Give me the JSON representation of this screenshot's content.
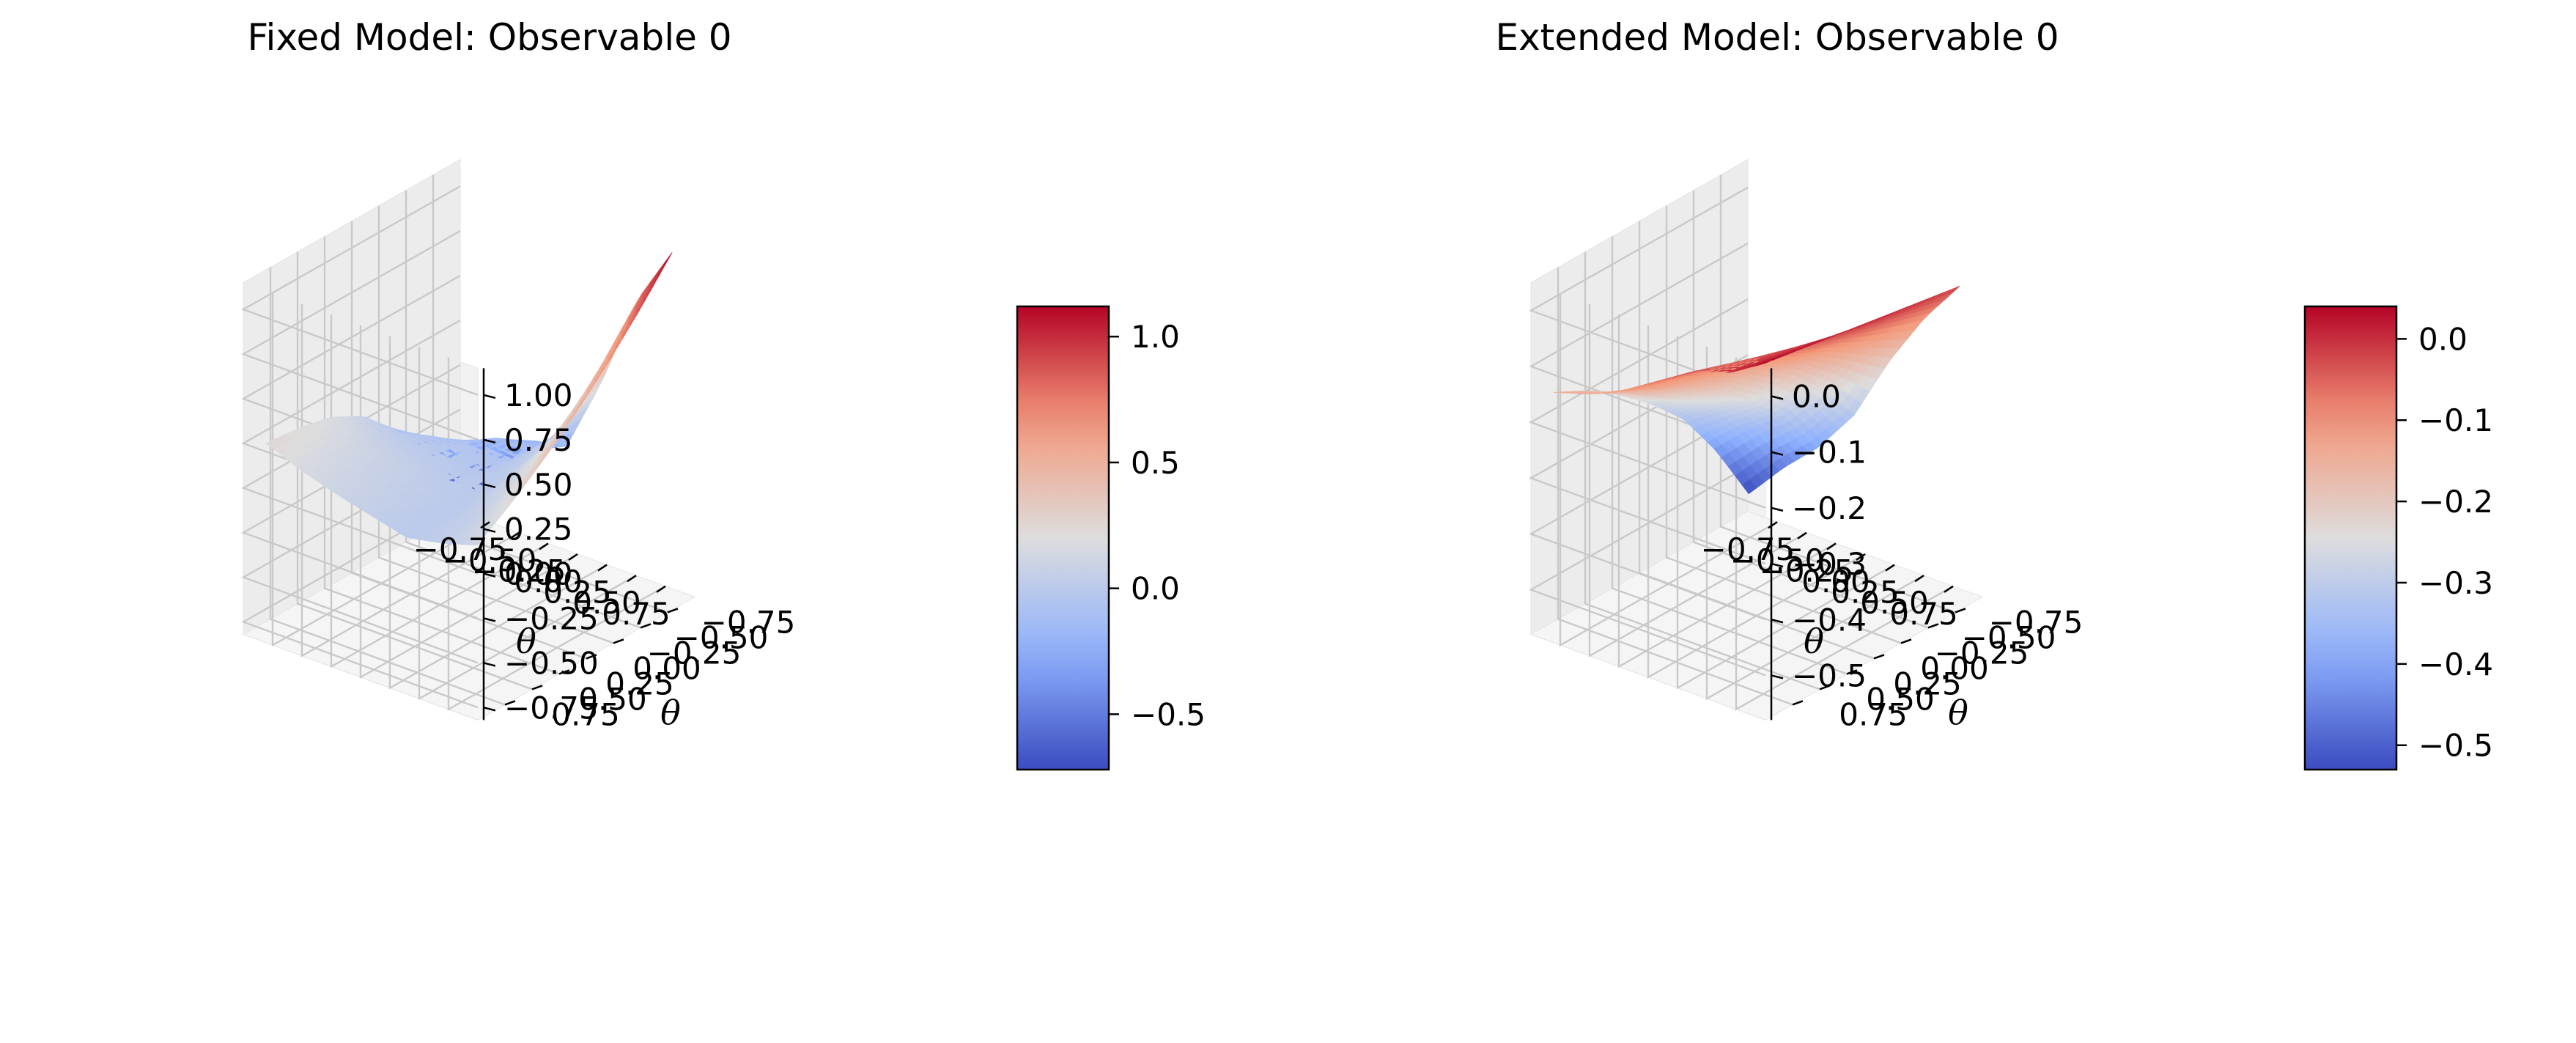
{
  "chart_data": [
    {
      "type": "surface",
      "title": "Fixed Model: Observable 0",
      "xlabel": "θ",
      "ylabel": "θ",
      "zlabel": "",
      "x_ticks": [
        "−0.75",
        "−0.50",
        "−0.25",
        "0.00",
        "0.25",
        "0.50",
        "0.75"
      ],
      "y_ticks": [
        "−0.75",
        "−0.50",
        "−0.25",
        "0.00",
        "0.25",
        "0.50",
        "0.75"
      ],
      "z_ticks": [
        "−0.75",
        "−0.50",
        "−0.25",
        "0.00",
        "0.25",
        "0.50",
        "0.75",
        "1.00"
      ],
      "x_values": [
        -0.75,
        -0.5,
        -0.25,
        0.0,
        0.25,
        0.5,
        0.75
      ],
      "y_values": [
        -0.75,
        -0.5,
        -0.25,
        0.0,
        0.25,
        0.5,
        0.75
      ],
      "z_values": [
        -0.75,
        -0.5,
        -0.25,
        0.0,
        0.25,
        0.5,
        0.75,
        1.0
      ],
      "xlim": [
        -1.0,
        1.0
      ],
      "ylim": [
        -1.0,
        1.0
      ],
      "zlim": [
        -0.82,
        1.15
      ],
      "surface_x": [
        -0.9,
        -0.6,
        -0.3,
        0.0,
        0.3,
        0.6,
        0.9
      ],
      "surface_y": [
        -0.9,
        -0.6,
        -0.3,
        0.0,
        0.3,
        0.6,
        0.9
      ],
      "surface_z": [
        [
          -0.72,
          -0.38,
          -0.1,
          0.08,
          0.18,
          0.22,
          0.24
        ],
        [
          -0.48,
          -0.2,
          -0.06,
          0.02,
          0.1,
          0.14,
          0.16
        ],
        [
          -0.22,
          -0.1,
          -0.04,
          0.0,
          0.06,
          0.08,
          0.1
        ],
        [
          -0.18,
          -0.1,
          -0.06,
          -0.02,
          0.02,
          0.04,
          0.05
        ],
        [
          0.25,
          0.12,
          0.05,
          0.02,
          0.0,
          0.0,
          0.0
        ],
        [
          0.78,
          0.55,
          0.35,
          0.22,
          0.12,
          0.06,
          0.04
        ],
        [
          1.12,
          0.9,
          0.7,
          0.52,
          0.36,
          0.22,
          0.1
        ]
      ],
      "colormap": "coolwarm",
      "colorbar": {
        "range": [
          -0.72,
          1.12
        ],
        "ticks": [
          "−0.5",
          "0.0",
          "0.5",
          "1.0"
        ],
        "values": [
          -0.5,
          0.0,
          0.5,
          1.0
        ]
      },
      "grid": true
    },
    {
      "type": "surface",
      "title": "Extended Model: Observable 0",
      "xlabel": "θ",
      "ylabel": "θ",
      "zlabel": "",
      "x_ticks": [
        "−0.75",
        "−0.50",
        "−0.25",
        "0.00",
        "0.25",
        "0.50",
        "0.75"
      ],
      "y_ticks": [
        "−0.75",
        "−0.50",
        "−0.25",
        "0.00",
        "0.25",
        "0.50",
        "0.75"
      ],
      "z_ticks": [
        "−0.5",
        "−0.4",
        "−0.3",
        "−0.2",
        "−0.1",
        "0.0"
      ],
      "x_values": [
        -0.75,
        -0.5,
        -0.25,
        0.0,
        0.25,
        0.5,
        0.75
      ],
      "y_values": [
        -0.75,
        -0.5,
        -0.25,
        0.0,
        0.25,
        0.5,
        0.75
      ],
      "z_values": [
        -0.5,
        -0.4,
        -0.3,
        -0.2,
        -0.1,
        0.0
      ],
      "xlim": [
        -1.0,
        1.0
      ],
      "ylim": [
        -1.0,
        1.0
      ],
      "zlim": [
        -0.58,
        0.05
      ],
      "surface_x": [
        -0.9,
        -0.6,
        -0.3,
        0.0,
        0.3,
        0.6,
        0.9
      ],
      "surface_y": [
        -0.9,
        -0.6,
        -0.3,
        0.0,
        0.3,
        0.6,
        0.9
      ],
      "surface_z": [
        [
          -0.53,
          -0.42,
          -0.33,
          -0.27,
          -0.22,
          -0.18,
          -0.15
        ],
        [
          -0.46,
          -0.36,
          -0.29,
          -0.24,
          -0.2,
          -0.16,
          -0.13
        ],
        [
          -0.4,
          -0.31,
          -0.25,
          -0.2,
          -0.16,
          -0.13,
          -0.1
        ],
        [
          -0.32,
          -0.24,
          -0.18,
          -0.14,
          -0.11,
          -0.08,
          -0.06
        ],
        [
          -0.2,
          -0.16,
          -0.12,
          -0.09,
          -0.06,
          -0.04,
          -0.02
        ],
        [
          -0.1,
          -0.08,
          -0.06,
          -0.04,
          -0.02,
          -0.01,
          0.0
        ],
        [
          -0.02,
          -0.01,
          0.0,
          0.01,
          0.02,
          0.03,
          0.04
        ]
      ],
      "colormap": "coolwarm",
      "colorbar": {
        "range": [
          -0.53,
          0.04
        ],
        "ticks": [
          "−0.5",
          "−0.4",
          "−0.3",
          "−0.2",
          "−0.1",
          "0.0"
        ],
        "values": [
          -0.5,
          -0.4,
          -0.3,
          -0.2,
          -0.1,
          0.0
        ]
      },
      "grid": true
    }
  ]
}
